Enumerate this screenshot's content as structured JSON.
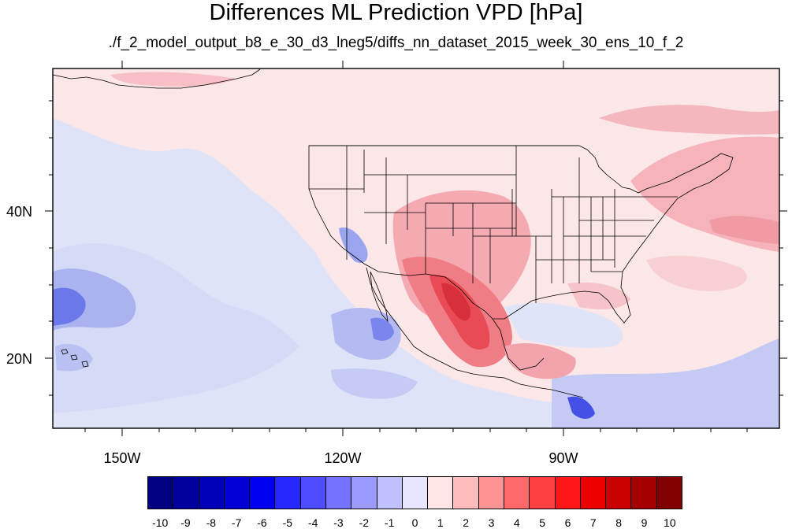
{
  "title": "Differences ML Prediction VPD [hPa]",
  "subtitle": "./f_2_model_output_b8_e_30_d3_lneg5/diffs_nn_dataset_2015_week_30_ens_10_f_2",
  "lat_labels": [
    "40N",
    "20N"
  ],
  "lon_labels": [
    "150W",
    "120W",
    "90W"
  ],
  "colorbar": {
    "labels": [
      "-10",
      "-9",
      "-8",
      "-7",
      "-6",
      "-5",
      "-4",
      "-3",
      "-2",
      "-1",
      "0",
      "1",
      "2",
      "3",
      "4",
      "5",
      "6",
      "7",
      "8",
      "9",
      "10"
    ],
    "colors": [
      "#000080",
      "#00009c",
      "#0000b8",
      "#0000d4",
      "#0000f0",
      "#2626ff",
      "#4d4dff",
      "#7373ff",
      "#9a9aff",
      "#c0c0ff",
      "#e6e6ff",
      "#ffe6e6",
      "#ffbcbc",
      "#ff9393",
      "#ff6969",
      "#ff4040",
      "#ff1616",
      "#ec0000",
      "#c80000",
      "#a40000",
      "#800000"
    ]
  },
  "map": {
    "background_color": "#fbe6e8",
    "lon_range": [
      -160,
      -61
    ],
    "lat_range": [
      11,
      60
    ]
  }
}
